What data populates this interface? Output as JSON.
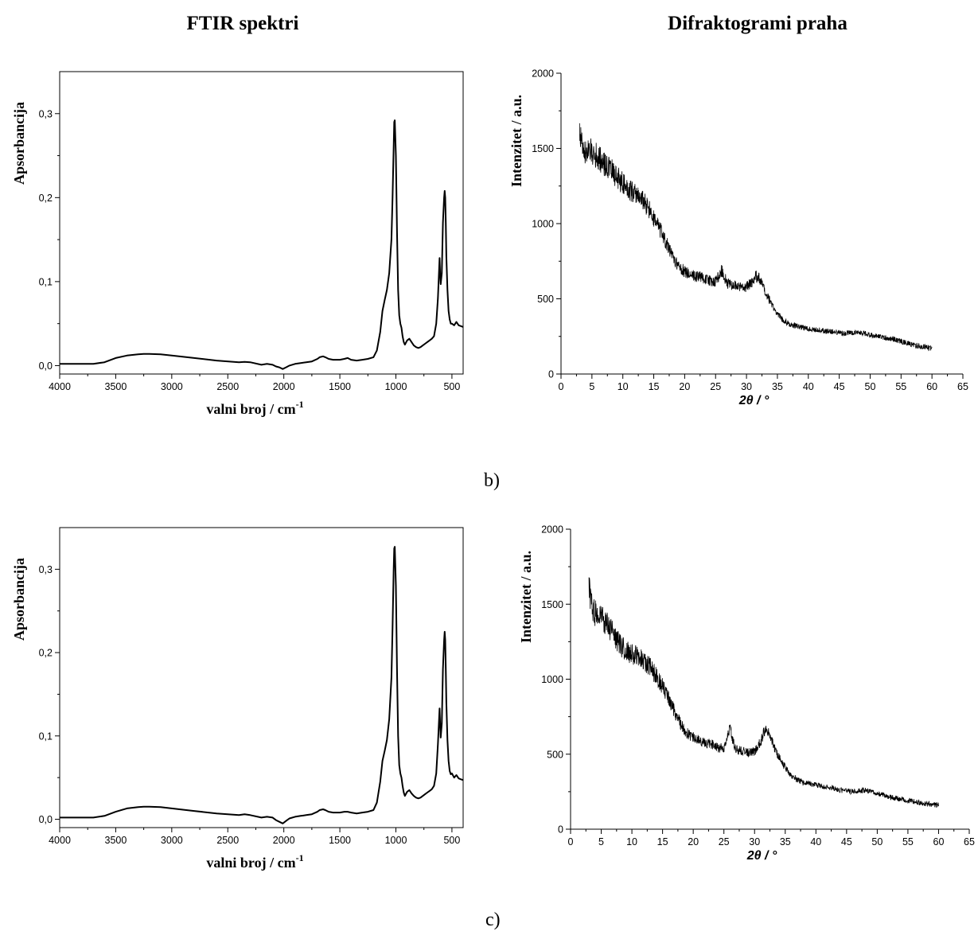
{
  "headings": {
    "left": "FTIR spektri",
    "right": "Difraktogrami praha"
  },
  "panel_labels": [
    "b)",
    "c)"
  ],
  "chart_data": [
    {
      "id": "ftir-b",
      "type": "line",
      "xlabel": "valni broj / cm",
      "xlabel_sup": "-1",
      "ylabel": "Apsorbancija",
      "xlim": [
        4000,
        400
      ],
      "ylim": [
        -0.01,
        0.35
      ],
      "xticks": [
        4000,
        3500,
        3000,
        2500,
        2000,
        1500,
        1000,
        500
      ],
      "xtick_labels": [
        "4000",
        "3500",
        "3000",
        "2500",
        "2000",
        "1500",
        "1000",
        "500"
      ],
      "yticks": [
        0.0,
        0.1,
        0.2,
        0.3
      ],
      "ytick_labels": [
        "0,0",
        "0,1",
        "0,2",
        "0,3"
      ],
      "series": [
        {
          "x": [
            4000,
            3700,
            3600,
            3500,
            3400,
            3300,
            3250,
            3200,
            3100,
            3000,
            2800,
            2600,
            2400,
            2350,
            2300,
            2200,
            2150,
            2100,
            2070,
            2040,
            2010,
            1980,
            1950,
            1900,
            1850,
            1800,
            1750,
            1700,
            1680,
            1650,
            1630,
            1600,
            1560,
            1500,
            1460,
            1430,
            1400,
            1350,
            1300,
            1250,
            1200,
            1170,
            1140,
            1120,
            1100,
            1080,
            1060,
            1040,
            1030,
            1020,
            1015,
            1010,
            1000,
            990,
            980,
            970,
            960,
            950,
            940,
            930,
            920,
            900,
            880,
            860,
            840,
            820,
            800,
            780,
            760,
            740,
            720,
            700,
            680,
            660,
            640,
            625,
            610,
            605,
            600,
            590,
            580,
            570,
            565,
            560,
            555,
            550,
            540,
            530,
            520,
            510,
            500,
            480,
            460,
            440,
            420,
            400
          ],
          "y": [
            0.002,
            0.002,
            0.004,
            0.009,
            0.012,
            0.0135,
            0.014,
            0.014,
            0.0135,
            0.012,
            0.009,
            0.006,
            0.004,
            0.0045,
            0.004,
            0.001,
            0.002,
            0.001,
            -0.001,
            -0.002,
            -0.004,
            -0.002,
            0.0,
            0.002,
            0.003,
            0.004,
            0.005,
            0.008,
            0.01,
            0.011,
            0.01,
            0.008,
            0.007,
            0.007,
            0.008,
            0.009,
            0.007,
            0.006,
            0.007,
            0.008,
            0.01,
            0.018,
            0.04,
            0.065,
            0.078,
            0.09,
            0.11,
            0.15,
            0.2,
            0.26,
            0.29,
            0.292,
            0.25,
            0.16,
            0.09,
            0.06,
            0.05,
            0.045,
            0.035,
            0.028,
            0.025,
            0.03,
            0.032,
            0.028,
            0.024,
            0.022,
            0.021,
            0.022,
            0.024,
            0.026,
            0.028,
            0.03,
            0.032,
            0.035,
            0.05,
            0.08,
            0.128,
            0.11,
            0.097,
            0.11,
            0.17,
            0.2,
            0.208,
            0.2,
            0.17,
            0.13,
            0.09,
            0.065,
            0.055,
            0.05,
            0.05,
            0.048,
            0.052,
            0.048,
            0.047,
            0.046
          ]
        }
      ]
    },
    {
      "id": "xrd-b",
      "type": "line",
      "xlabel": "2θ / °",
      "ylabel": "Intenzitet / a.u.",
      "xlim": [
        0,
        65
      ],
      "ylim": [
        0,
        2000
      ],
      "xticks": [
        0,
        5,
        10,
        15,
        20,
        25,
        30,
        35,
        40,
        45,
        50,
        55,
        60,
        65
      ],
      "xtick_labels": [
        "0",
        "5",
        "10",
        "15",
        "20",
        "25",
        "30",
        "35",
        "40",
        "45",
        "50",
        "55",
        "60",
        "65"
      ],
      "yticks": [
        0,
        500,
        1000,
        1500,
        2000
      ],
      "ytick_labels": [
        "0",
        "500",
        "1000",
        "1500",
        "2000"
      ],
      "series": [
        {
          "x": [
            3,
            3.5,
            4,
            5,
            6,
            7,
            8,
            9,
            10,
            11,
            12,
            13,
            14,
            15,
            16,
            17,
            18,
            19,
            20,
            21,
            22,
            23,
            24,
            25,
            25.5,
            26,
            26.5,
            27,
            28,
            29,
            30,
            31,
            31.5,
            32,
            32.5,
            33,
            34,
            35,
            36,
            37,
            38,
            39,
            40,
            42,
            44,
            46,
            48,
            50,
            52,
            54,
            56,
            58,
            60
          ],
          "y": [
            1620,
            1500,
            1470,
            1480,
            1440,
            1400,
            1360,
            1310,
            1270,
            1230,
            1200,
            1170,
            1110,
            1030,
            960,
            870,
            780,
            720,
            680,
            665,
            650,
            640,
            620,
            615,
            650,
            690,
            640,
            600,
            590,
            575,
            580,
            610,
            650,
            640,
            600,
            540,
            470,
            400,
            360,
            330,
            320,
            310,
            300,
            290,
            280,
            270,
            280,
            260,
            245,
            230,
            205,
            185,
            170
          ]
        }
      ]
    },
    {
      "id": "ftir-c",
      "type": "line",
      "xlabel": "valni broj / cm",
      "xlabel_sup": "-1",
      "ylabel": "Apsorbancija",
      "xlim": [
        4000,
        400
      ],
      "ylim": [
        -0.01,
        0.35
      ],
      "xticks": [
        4000,
        3500,
        3000,
        2500,
        2000,
        1500,
        1000,
        500
      ],
      "xtick_labels": [
        "4000",
        "3500",
        "3000",
        "2500",
        "2000",
        "1500",
        "1000",
        "500"
      ],
      "yticks": [
        0.0,
        0.1,
        0.2,
        0.3
      ],
      "ytick_labels": [
        "0,0",
        "0,1",
        "0,2",
        "0,3"
      ],
      "series": [
        {
          "x": [
            4000,
            3700,
            3600,
            3500,
            3400,
            3300,
            3250,
            3200,
            3100,
            3000,
            2800,
            2600,
            2400,
            2350,
            2300,
            2200,
            2150,
            2100,
            2070,
            2040,
            2010,
            1980,
            1950,
            1900,
            1850,
            1800,
            1750,
            1700,
            1680,
            1650,
            1630,
            1600,
            1560,
            1500,
            1460,
            1430,
            1400,
            1350,
            1300,
            1250,
            1200,
            1170,
            1140,
            1120,
            1100,
            1080,
            1060,
            1040,
            1030,
            1020,
            1015,
            1010,
            1000,
            990,
            980,
            970,
            960,
            950,
            940,
            930,
            920,
            900,
            880,
            860,
            840,
            820,
            800,
            780,
            760,
            740,
            720,
            700,
            680,
            660,
            640,
            625,
            610,
            605,
            600,
            590,
            580,
            570,
            565,
            560,
            555,
            550,
            540,
            530,
            520,
            510,
            500,
            480,
            460,
            440,
            420,
            400
          ],
          "y": [
            0.002,
            0.002,
            0.004,
            0.009,
            0.013,
            0.0145,
            0.015,
            0.015,
            0.0145,
            0.013,
            0.01,
            0.007,
            0.005,
            0.006,
            0.005,
            0.002,
            0.003,
            0.002,
            -0.001,
            -0.003,
            -0.005,
            -0.002,
            0.001,
            0.003,
            0.004,
            0.005,
            0.006,
            0.009,
            0.011,
            0.012,
            0.011,
            0.009,
            0.008,
            0.008,
            0.009,
            0.009,
            0.008,
            0.007,
            0.008,
            0.009,
            0.011,
            0.02,
            0.045,
            0.07,
            0.082,
            0.095,
            0.12,
            0.17,
            0.23,
            0.3,
            0.325,
            0.327,
            0.28,
            0.18,
            0.1,
            0.065,
            0.055,
            0.05,
            0.04,
            0.032,
            0.028,
            0.033,
            0.035,
            0.031,
            0.028,
            0.026,
            0.025,
            0.026,
            0.028,
            0.03,
            0.032,
            0.034,
            0.036,
            0.04,
            0.055,
            0.09,
            0.133,
            0.115,
            0.098,
            0.115,
            0.18,
            0.215,
            0.225,
            0.215,
            0.18,
            0.14,
            0.095,
            0.07,
            0.058,
            0.054,
            0.055,
            0.05,
            0.053,
            0.049,
            0.048,
            0.047
          ]
        }
      ]
    },
    {
      "id": "xrd-c",
      "type": "line",
      "xlabel": "2θ / °",
      "ylabel": "Intenzitet / a.u.",
      "xlim": [
        0,
        65
      ],
      "ylim": [
        0,
        2000
      ],
      "xticks": [
        0,
        5,
        10,
        15,
        20,
        25,
        30,
        35,
        40,
        45,
        50,
        55,
        60,
        65
      ],
      "xtick_labels": [
        "0",
        "5",
        "10",
        "15",
        "20",
        "25",
        "30",
        "35",
        "40",
        "45",
        "50",
        "55",
        "60",
        "65"
      ],
      "yticks": [
        0,
        500,
        1000,
        1500,
        2000
      ],
      "ytick_labels": [
        "0",
        "500",
        "1000",
        "1500",
        "2000"
      ],
      "series": [
        {
          "x": [
            3,
            3.5,
            4,
            5,
            6,
            7,
            8,
            9,
            10,
            11,
            12,
            13,
            14,
            15,
            16,
            17,
            18,
            19,
            20,
            21,
            22,
            23,
            24,
            25,
            25.5,
            26,
            26.5,
            27,
            28,
            29,
            30,
            31,
            31.5,
            32,
            32.5,
            33,
            34,
            35,
            36,
            37,
            38,
            39,
            40,
            42,
            44,
            46,
            48,
            50,
            52,
            54,
            56,
            58,
            60
          ],
          "y": [
            1620,
            1470,
            1440,
            1420,
            1360,
            1300,
            1230,
            1190,
            1170,
            1150,
            1120,
            1080,
            1020,
            950,
            870,
            780,
            700,
            640,
            610,
            590,
            575,
            565,
            545,
            540,
            620,
            680,
            580,
            530,
            520,
            510,
            520,
            580,
            650,
            670,
            630,
            570,
            480,
            410,
            360,
            330,
            310,
            305,
            295,
            280,
            260,
            250,
            260,
            240,
            215,
            200,
            185,
            170,
            160
          ]
        }
      ]
    }
  ]
}
